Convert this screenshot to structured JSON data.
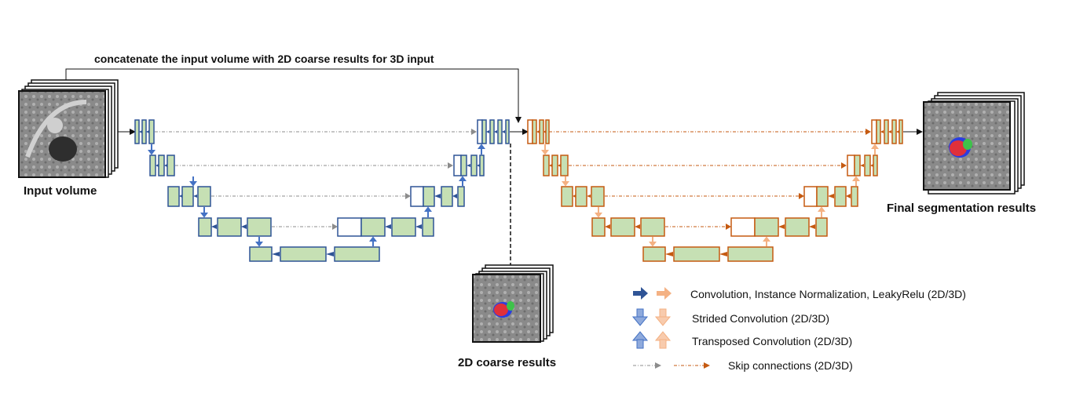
{
  "top_label": "concatenate the input volume with 2D coarse results for 3D input",
  "labels": {
    "input": "Input volume",
    "coarse": "2D coarse results",
    "final": "Final segmentation results"
  },
  "legend": [
    {
      "text": "Convolution, Instance Normalization, LeakyRelu (2D/3D)"
    },
    {
      "text": "Strided Convolution (2D/3D)"
    },
    {
      "text": "Transposed Convolution (2D/3D)"
    },
    {
      "text": "Skip connections (2D/3D)"
    }
  ],
  "colors": {
    "net2d_border": "#2F5496",
    "net3d_border": "#C55A11",
    "block_fill": "#C6E0B4",
    "arrow2d": "#4472C4",
    "arrow3d": "#F4B183",
    "skip2d": "#8C8C8C",
    "skip3d": "#C55A11"
  }
}
